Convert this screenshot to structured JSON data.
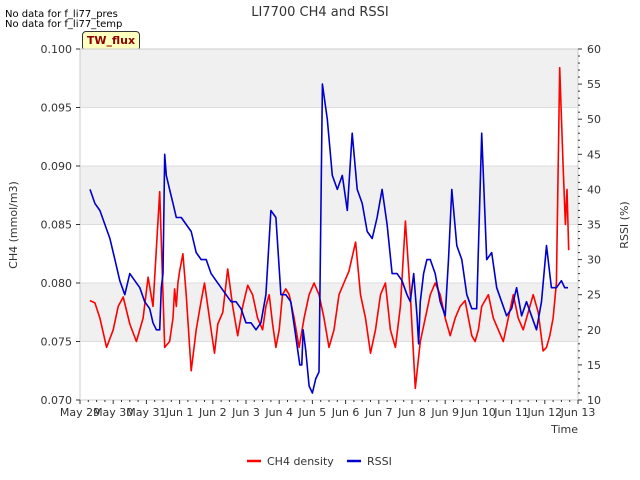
{
  "messages": [
    "No data for f_li77_pres",
    "No data for f_li77_temp"
  ],
  "tag_label": "TW_flux",
  "chart_data": {
    "type": "line",
    "title": "LI7700 CH4 and RSSI",
    "xlabel": "Time",
    "ylabel": "CH4 (mmol/m3)",
    "y2label": "RSSI (%)",
    "xlim": [
      0,
      15
    ],
    "ylim": [
      0.07,
      0.1
    ],
    "y2lim": [
      10,
      60
    ],
    "x_ticks": [
      0,
      1,
      2,
      3,
      4,
      5,
      6,
      7,
      8,
      9,
      10,
      11,
      12,
      13,
      14,
      15
    ],
    "x_tick_labels": [
      "May 29",
      "May 30",
      "May 31",
      "Jun 1",
      "Jun 2",
      "Jun 3",
      "Jun 4",
      "Jun 5",
      "Jun 6",
      "Jun 7",
      "Jun 8",
      "Jun 9",
      "Jun 10",
      "Jun 11",
      "Jun 12",
      "Jun 13"
    ],
    "y_ticks": [
      0.07,
      0.075,
      0.08,
      0.085,
      0.09,
      0.095,
      0.1
    ],
    "y_tick_labels": [
      "0.070",
      "0.075",
      "0.080",
      "0.085",
      "0.090",
      "0.095",
      "0.100"
    ],
    "y2_ticks": [
      10,
      15,
      20,
      25,
      30,
      35,
      40,
      45,
      50,
      55,
      60
    ],
    "y2_tick_labels": [
      "10",
      "15",
      "20",
      "25",
      "30",
      "35",
      "40",
      "45",
      "50",
      "55",
      "60"
    ],
    "legend": [
      {
        "name": "CH4 density",
        "color": "#ff0000"
      },
      {
        "name": "RSSI",
        "color": "#0000cc"
      }
    ],
    "series": [
      {
        "name": "CH4 density",
        "axis": "left",
        "color": "#ff0000",
        "x": [
          0.3,
          0.45,
          0.6,
          0.8,
          1.0,
          1.15,
          1.3,
          1.5,
          1.7,
          1.9,
          2.05,
          2.2,
          2.4,
          2.55,
          2.7,
          2.8,
          2.85,
          2.9,
          2.95,
          3.0,
          3.1,
          3.2,
          3.35,
          3.5,
          3.65,
          3.75,
          3.85,
          3.95,
          4.05,
          4.15,
          4.3,
          4.45,
          4.6,
          4.75,
          4.9,
          5.05,
          5.2,
          5.35,
          5.5,
          5.6,
          5.7,
          5.8,
          5.9,
          6.0,
          6.1,
          6.2,
          6.3,
          6.45,
          6.6,
          6.75,
          6.9,
          7.05,
          7.2,
          7.35,
          7.5,
          7.65,
          7.8,
          7.95,
          8.1,
          8.3,
          8.45,
          8.6,
          8.75,
          8.9,
          9.05,
          9.2,
          9.35,
          9.5,
          9.65,
          9.8,
          9.95,
          10.1,
          10.25,
          10.4,
          10.55,
          10.7,
          10.85,
          11.0,
          11.15,
          11.3,
          11.45,
          11.6,
          11.7,
          11.8,
          11.9,
          12.0,
          12.1,
          12.3,
          12.45,
          12.6,
          12.75,
          12.9,
          13.05,
          13.2,
          13.35,
          13.5,
          13.65,
          13.8,
          13.95,
          14.05,
          14.15,
          14.25,
          14.35,
          14.45,
          14.55,
          14.62,
          14.67,
          14.72
        ],
        "y": [
          0.0785,
          0.0783,
          0.077,
          0.0745,
          0.076,
          0.078,
          0.0788,
          0.0765,
          0.075,
          0.077,
          0.0805,
          0.078,
          0.0878,
          0.0745,
          0.075,
          0.077,
          0.0795,
          0.078,
          0.08,
          0.081,
          0.0825,
          0.079,
          0.0725,
          0.076,
          0.0785,
          0.08,
          0.078,
          0.076,
          0.074,
          0.0765,
          0.0775,
          0.0812,
          0.078,
          0.0755,
          0.078,
          0.0798,
          0.079,
          0.077,
          0.076,
          0.078,
          0.079,
          0.0765,
          0.0745,
          0.076,
          0.079,
          0.0795,
          0.079,
          0.077,
          0.0745,
          0.077,
          0.079,
          0.08,
          0.079,
          0.077,
          0.0745,
          0.076,
          0.079,
          0.08,
          0.081,
          0.0835,
          0.079,
          0.077,
          0.074,
          0.076,
          0.079,
          0.08,
          0.076,
          0.0745,
          0.078,
          0.0853,
          0.079,
          0.071,
          0.075,
          0.077,
          0.079,
          0.08,
          0.079,
          0.077,
          0.0755,
          0.077,
          0.078,
          0.0785,
          0.077,
          0.0755,
          0.075,
          0.076,
          0.078,
          0.079,
          0.077,
          0.076,
          0.075,
          0.077,
          0.079,
          0.077,
          0.076,
          0.0775,
          0.079,
          0.0775,
          0.0742,
          0.0745,
          0.0755,
          0.077,
          0.08,
          0.0984,
          0.09,
          0.085,
          0.088,
          0.0828
        ]
      },
      {
        "name": "RSSI",
        "axis": "right",
        "color": "#0000cc",
        "x": [
          0.3,
          0.45,
          0.6,
          0.75,
          0.9,
          1.05,
          1.2,
          1.35,
          1.5,
          1.65,
          1.8,
          1.95,
          2.1,
          2.2,
          2.3,
          2.4,
          2.45,
          2.5,
          2.55,
          2.6,
          2.7,
          2.8,
          2.9,
          3.05,
          3.2,
          3.35,
          3.5,
          3.65,
          3.8,
          3.95,
          4.1,
          4.25,
          4.4,
          4.55,
          4.7,
          4.85,
          5.0,
          5.15,
          5.3,
          5.45,
          5.6,
          5.75,
          5.9,
          6.05,
          6.2,
          6.35,
          6.5,
          6.62,
          6.68,
          6.72,
          6.8,
          6.9,
          7.0,
          7.1,
          7.2,
          7.3,
          7.45,
          7.6,
          7.75,
          7.9,
          8.05,
          8.2,
          8.35,
          8.5,
          8.65,
          8.8,
          8.95,
          9.1,
          9.25,
          9.4,
          9.55,
          9.7,
          9.85,
          9.95,
          10.05,
          10.15,
          10.2,
          10.25,
          10.35,
          10.45,
          10.55,
          10.7,
          10.85,
          11.0,
          11.1,
          11.2,
          11.35,
          11.5,
          11.65,
          11.8,
          11.95,
          12.1,
          12.25,
          12.4,
          12.55,
          12.7,
          12.85,
          13.0,
          13.15,
          13.3,
          13.45,
          13.6,
          13.75,
          13.9,
          14.05,
          14.2,
          14.35,
          14.5,
          14.6,
          14.7
        ],
        "y": [
          40,
          38,
          37,
          35,
          33,
          30,
          27,
          25,
          28,
          27,
          26,
          24,
          23,
          21,
          20,
          20,
          26,
          28,
          45,
          42,
          40,
          38,
          36,
          36,
          35,
          34,
          31,
          30,
          30,
          28,
          27,
          26,
          25,
          24,
          24,
          23,
          21,
          21,
          20,
          21,
          25,
          37,
          36,
          25,
          25,
          24,
          19,
          15,
          15,
          20,
          17,
          12,
          11,
          13,
          14,
          55,
          50,
          42,
          40,
          42,
          37,
          48,
          40,
          38,
          34,
          33,
          36,
          40,
          35,
          28,
          28,
          27,
          25,
          24,
          28,
          22,
          18,
          24,
          28,
          30,
          30,
          28,
          24,
          22,
          30,
          40,
          32,
          30,
          25,
          23,
          23,
          48,
          30,
          31,
          26,
          24,
          22,
          23,
          26,
          22,
          24,
          22,
          20,
          24,
          32,
          26,
          26,
          27,
          26,
          26
        ]
      }
    ]
  }
}
